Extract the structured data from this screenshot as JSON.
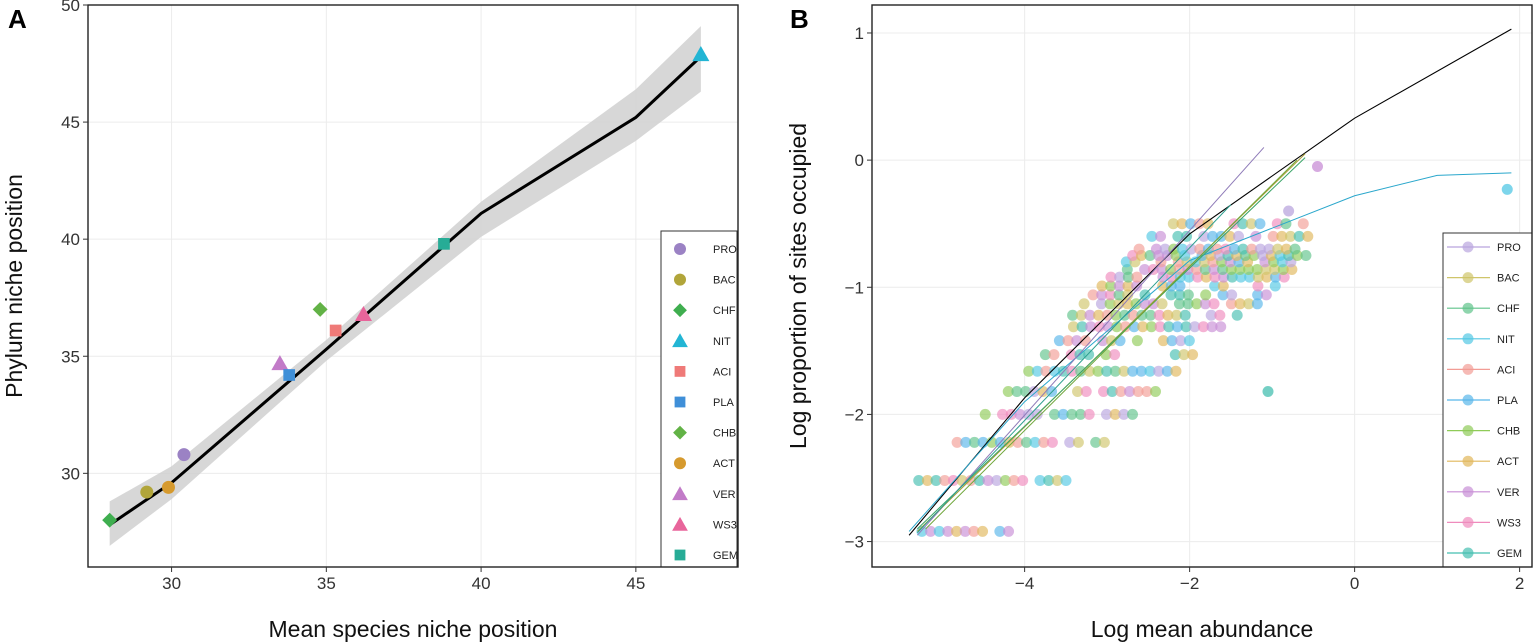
{
  "chart_data": [
    {
      "panel": "A",
      "type": "scatter",
      "xlabel": "Mean species niche position",
      "ylabel": "Phylum niche position",
      "xlim": [
        27.3,
        48.3
      ],
      "ylim": [
        26.0,
        50.0
      ],
      "xticks": [
        "30",
        "35",
        "40",
        "45"
      ],
      "yticks": [
        "30",
        "35",
        "40",
        "45",
        "50"
      ],
      "legend_position": "right",
      "legend": [
        {
          "code": "PRO",
          "shape": "circle",
          "color": "#9b82c4"
        },
        {
          "code": "BAC",
          "shape": "circle",
          "color": "#b1a53a"
        },
        {
          "code": "CHF",
          "shape": "diamond",
          "color": "#3fae4f"
        },
        {
          "code": "NIT",
          "shape": "triangle",
          "color": "#22b5d4"
        },
        {
          "code": "ACI",
          "shape": "square",
          "color": "#ef7a78"
        },
        {
          "code": "PLA",
          "shape": "square",
          "color": "#3f8fd8"
        },
        {
          "code": "CHB",
          "shape": "diamond",
          "color": "#62b246"
        },
        {
          "code": "ACT",
          "shape": "circle",
          "color": "#d69a2e"
        },
        {
          "code": "VER",
          "shape": "triangle",
          "color": "#c27bc8"
        },
        {
          "code": "WS3",
          "shape": "triangle",
          "color": "#e8659b"
        },
        {
          "code": "GEM",
          "shape": "square",
          "color": "#27ac96"
        }
      ],
      "points": [
        {
          "group": "CHF",
          "x": 28.0,
          "y": 28.0
        },
        {
          "group": "BAC",
          "x": 29.2,
          "y": 29.2
        },
        {
          "group": "ACT",
          "x": 29.9,
          "y": 29.4
        },
        {
          "group": "PRO",
          "x": 30.4,
          "y": 30.8
        },
        {
          "group": "VER",
          "x": 33.5,
          "y": 34.7
        },
        {
          "group": "PLA",
          "x": 33.8,
          "y": 34.2
        },
        {
          "group": "CHB",
          "x": 34.8,
          "y": 37.0
        },
        {
          "group": "ACI",
          "x": 35.3,
          "y": 36.1
        },
        {
          "group": "WS3",
          "x": 36.2,
          "y": 36.8
        },
        {
          "group": "GEM",
          "x": 38.8,
          "y": 39.8
        },
        {
          "group": "NIT",
          "x": 47.1,
          "y": 47.9
        }
      ],
      "fit": {
        "line": [
          [
            28.0,
            27.8
          ],
          [
            30.0,
            29.6
          ],
          [
            35.0,
            35.3
          ],
          [
            40.0,
            41.1
          ],
          [
            45.0,
            45.2
          ],
          [
            47.1,
            47.8
          ]
        ],
        "ci_upper": [
          [
            28.0,
            28.8
          ],
          [
            30.0,
            30.3
          ],
          [
            35.0,
            35.7
          ],
          [
            40.0,
            41.6
          ],
          [
            45.0,
            46.4
          ],
          [
            47.1,
            49.1
          ]
        ],
        "ci_lower": [
          [
            28.0,
            26.9
          ],
          [
            30.0,
            28.9
          ],
          [
            35.0,
            34.8
          ],
          [
            40.0,
            40.1
          ],
          [
            45.0,
            44.2
          ],
          [
            47.1,
            46.3
          ]
        ]
      }
    },
    {
      "panel": "B",
      "type": "scatter",
      "xlabel": "Log mean abundance",
      "ylabel": "Log proportion of sites occupied",
      "xlim": [
        -5.85,
        2.15
      ],
      "ylim": [
        -3.2,
        1.22
      ],
      "xticks": [
        "−4",
        "−2",
        "0",
        "2"
      ],
      "yticks": [
        "−3",
        "−2",
        "−1",
        "0",
        "1"
      ],
      "legend_position": "right",
      "legend": [
        {
          "code": "PRO",
          "color": "#b9a5de"
        },
        {
          "code": "BAC",
          "color": "#cfc56a"
        },
        {
          "code": "CHF",
          "color": "#5fc38a"
        },
        {
          "code": "NIT",
          "color": "#52c7e4"
        },
        {
          "code": "ACI",
          "color": "#f29c95"
        },
        {
          "code": "PLA",
          "color": "#58b6ea"
        },
        {
          "code": "CHB",
          "color": "#8fcb58"
        },
        {
          "code": "ACT",
          "color": "#e1b75a"
        },
        {
          "code": "VER",
          "color": "#c88ed5"
        },
        {
          "code": "WS3",
          "color": "#ef8bbd"
        },
        {
          "code": "GEM",
          "color": "#45bfb0"
        }
      ],
      "y_levels": [
        -2.92,
        -2.52,
        -2.22,
        -2.0,
        -1.82,
        -1.66,
        -1.53,
        -1.42,
        -1.31,
        -1.22,
        -1.13,
        -1.06,
        -0.99,
        -0.92,
        -0.86,
        -0.8,
        -0.75,
        -0.7,
        -0.6,
        -0.5
      ],
      "fit_lines": [
        {
          "group": "overall",
          "color": "#000000",
          "points": [
            [
              -5.4,
              -2.95
            ],
            [
              -4,
              -1.87
            ],
            [
              -2,
              -0.58
            ],
            [
              0,
              0.33
            ],
            [
              1.9,
              1.03
            ]
          ]
        },
        {
          "group": "NIT",
          "color": "#2aa7cc",
          "points": [
            [
              -5.4,
              -2.92
            ],
            [
              -4,
              -1.9
            ],
            [
              -2,
              -0.79
            ],
            [
              0,
              -0.28
            ],
            [
              1,
              -0.12
            ],
            [
              1.9,
              -0.1
            ]
          ]
        },
        {
          "group": "PRO",
          "color": "#8e7ab8",
          "points": [
            [
              -5.3,
              -2.95
            ],
            [
              -1.1,
              0.1
            ]
          ]
        },
        {
          "group": "BAC",
          "color": "#a99f36",
          "points": [
            [
              -5.3,
              -2.92
            ],
            [
              -0.6,
              0.05
            ]
          ]
        },
        {
          "group": "CHF",
          "color": "#3aa568",
          "points": [
            [
              -5.3,
              -2.9
            ],
            [
              -0.6,
              0.02
            ]
          ]
        },
        {
          "group": "CHB",
          "color": "#6fa63a",
          "points": [
            [
              -5.2,
              -2.9
            ],
            [
              -0.7,
              0.0
            ]
          ]
        },
        {
          "group": "GEM",
          "color": "#2e9f8f",
          "points": [
            [
              -5.3,
              -2.93
            ],
            [
              -1.5,
              -0.35
            ]
          ]
        }
      ],
      "outliers": [
        {
          "group": "NIT",
          "x": 1.85,
          "y": -0.23
        },
        {
          "group": "GEM",
          "x": -1.05,
          "y": -1.82
        },
        {
          "group": "PRO",
          "x": -0.8,
          "y": -0.4
        },
        {
          "group": "VER",
          "x": -0.45,
          "y": -0.05
        }
      ]
    }
  ]
}
